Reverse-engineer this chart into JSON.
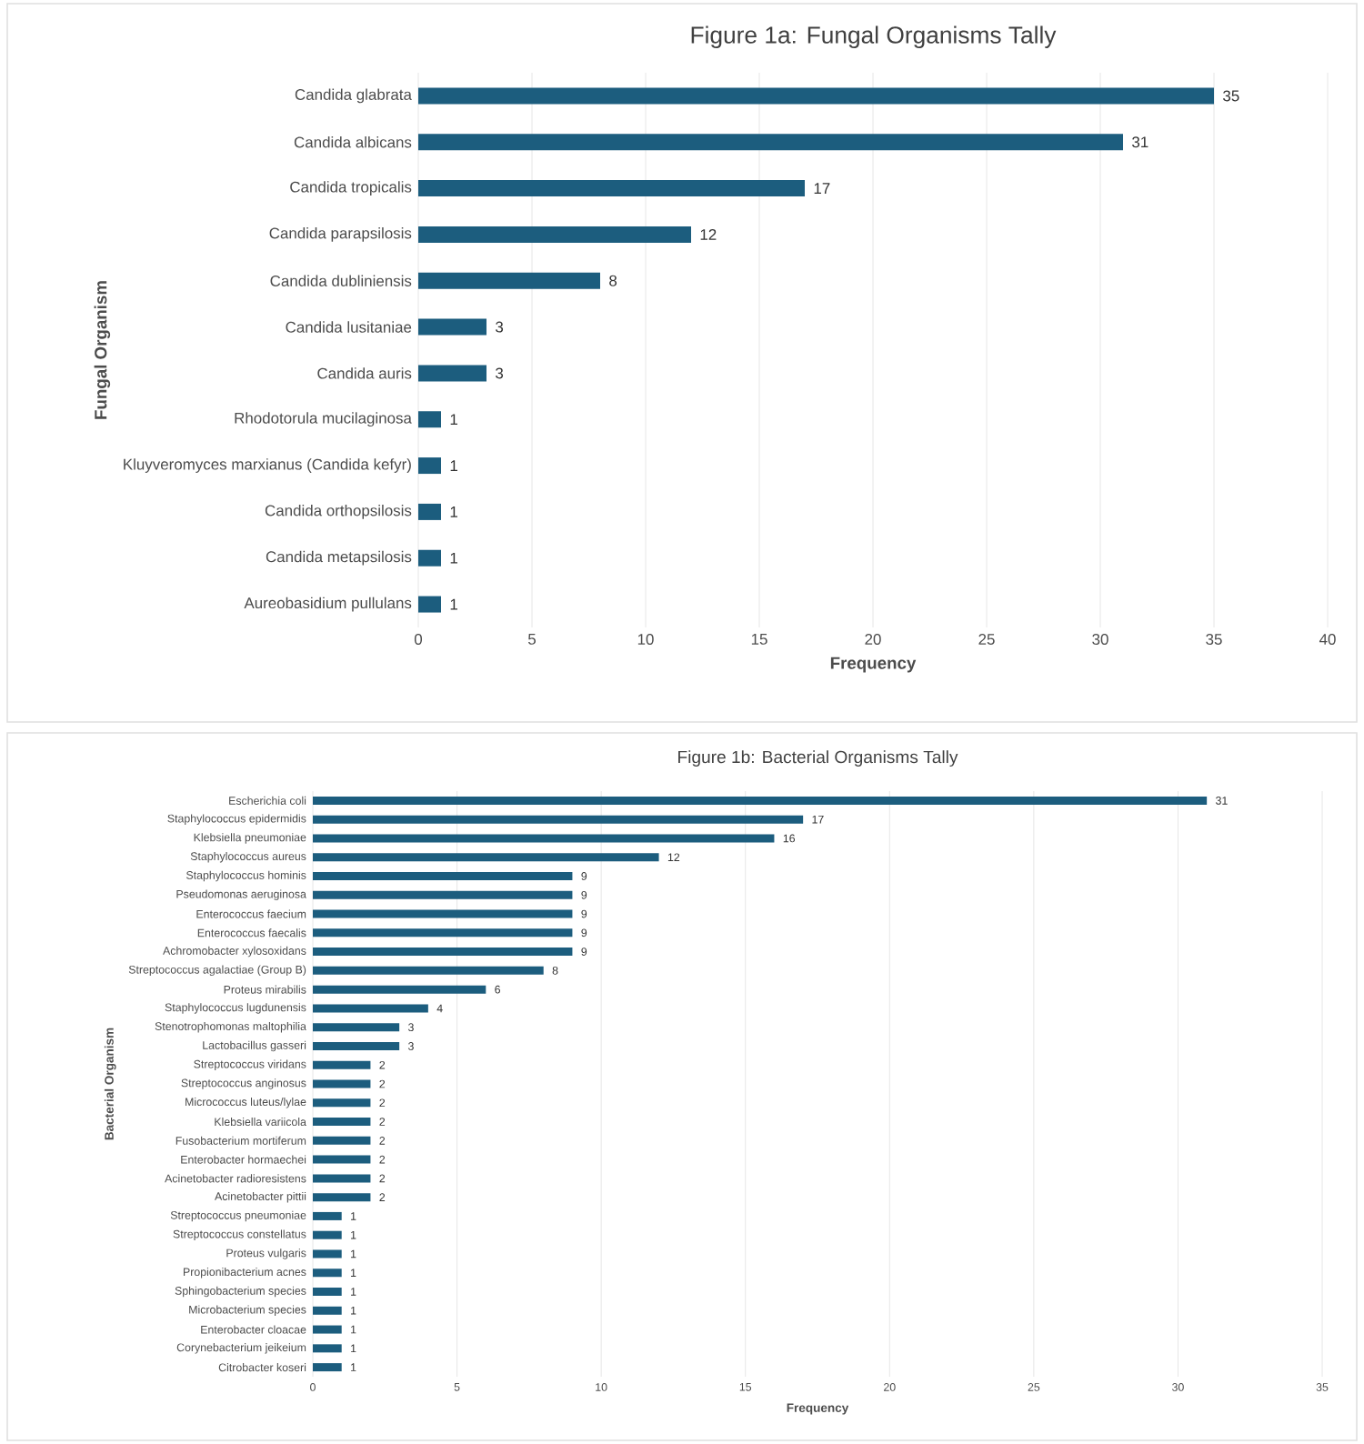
{
  "chart_data": [
    {
      "type": "bar",
      "orientation": "horizontal",
      "title": "Figure 1a: Fungal Organisms Tally",
      "xlabel": "Frequency",
      "ylabel": "Fungal Organism",
      "categories": [
        "Candida glabrata",
        "Candida albicans",
        "Candida tropicalis",
        "Candida parapsilosis",
        "Candida dubliniensis",
        "Candida lusitaniae",
        "Candida auris",
        "Rhodotorula mucilaginosa",
        "Kluyveromyces marxianus (Candida kefyr)",
        "Candida orthopsilosis",
        "Candida metapsilosis",
        "Aureobasidium pullulans"
      ],
      "values": [
        35,
        31,
        17,
        12,
        8,
        3,
        3,
        1,
        1,
        1,
        1,
        1
      ],
      "color": "#1c5d7e",
      "data_labels": true,
      "grid": "x",
      "xlim": [
        0,
        40
      ],
      "xticks": [
        0,
        5,
        10,
        15,
        20,
        25,
        30,
        35,
        40
      ]
    },
    {
      "type": "bar",
      "orientation": "horizontal",
      "title": "Figure 1b: Bacterial Organisms Tally",
      "xlabel": "Frequency",
      "ylabel": "Bacterial Organism",
      "categories": [
        "Escherichia coli",
        "Staphylococcus epidermidis",
        "Klebsiella pneumoniae",
        "Staphylococcus aureus",
        "Staphylococcus hominis",
        "Pseudomonas aeruginosa",
        "Enterococcus faecium",
        "Enterococcus faecalis",
        "Achromobacter xylosoxidans",
        "Streptococcus agalactiae (Group B)",
        "Proteus mirabilis",
        "Staphylococcus lugdunensis",
        "Stenotrophomonas maltophilia",
        "Lactobacillus gasseri",
        "Streptococcus viridans",
        "Streptococcus anginosus",
        "Micrococcus luteus/lylae",
        "Klebsiella variicola",
        "Fusobacterium mortiferum",
        "Enterobacter hormaechei",
        "Acinetobacter radioresistens",
        "Acinetobacter pittii",
        "Streptococcus pneumoniae",
        "Streptococcus constellatus",
        "Proteus vulgaris",
        "Propionibacterium acnes",
        "Sphingobacterium species",
        "Microbacterium species",
        "Enterobacter cloacae",
        "Corynebacterium jeikeium",
        "Citrobacter koseri"
      ],
      "values": [
        31,
        17,
        16,
        12,
        9,
        9,
        9,
        9,
        9,
        8,
        6,
        4,
        3,
        3,
        2,
        2,
        2,
        2,
        2,
        2,
        2,
        2,
        1,
        1,
        1,
        1,
        1,
        1,
        1,
        1,
        1
      ],
      "color": "#1c5d7e",
      "data_labels": true,
      "grid": "x",
      "xlim": [
        0,
        35
      ],
      "xticks": [
        0,
        5,
        10,
        15,
        20,
        25,
        30,
        35
      ]
    }
  ]
}
